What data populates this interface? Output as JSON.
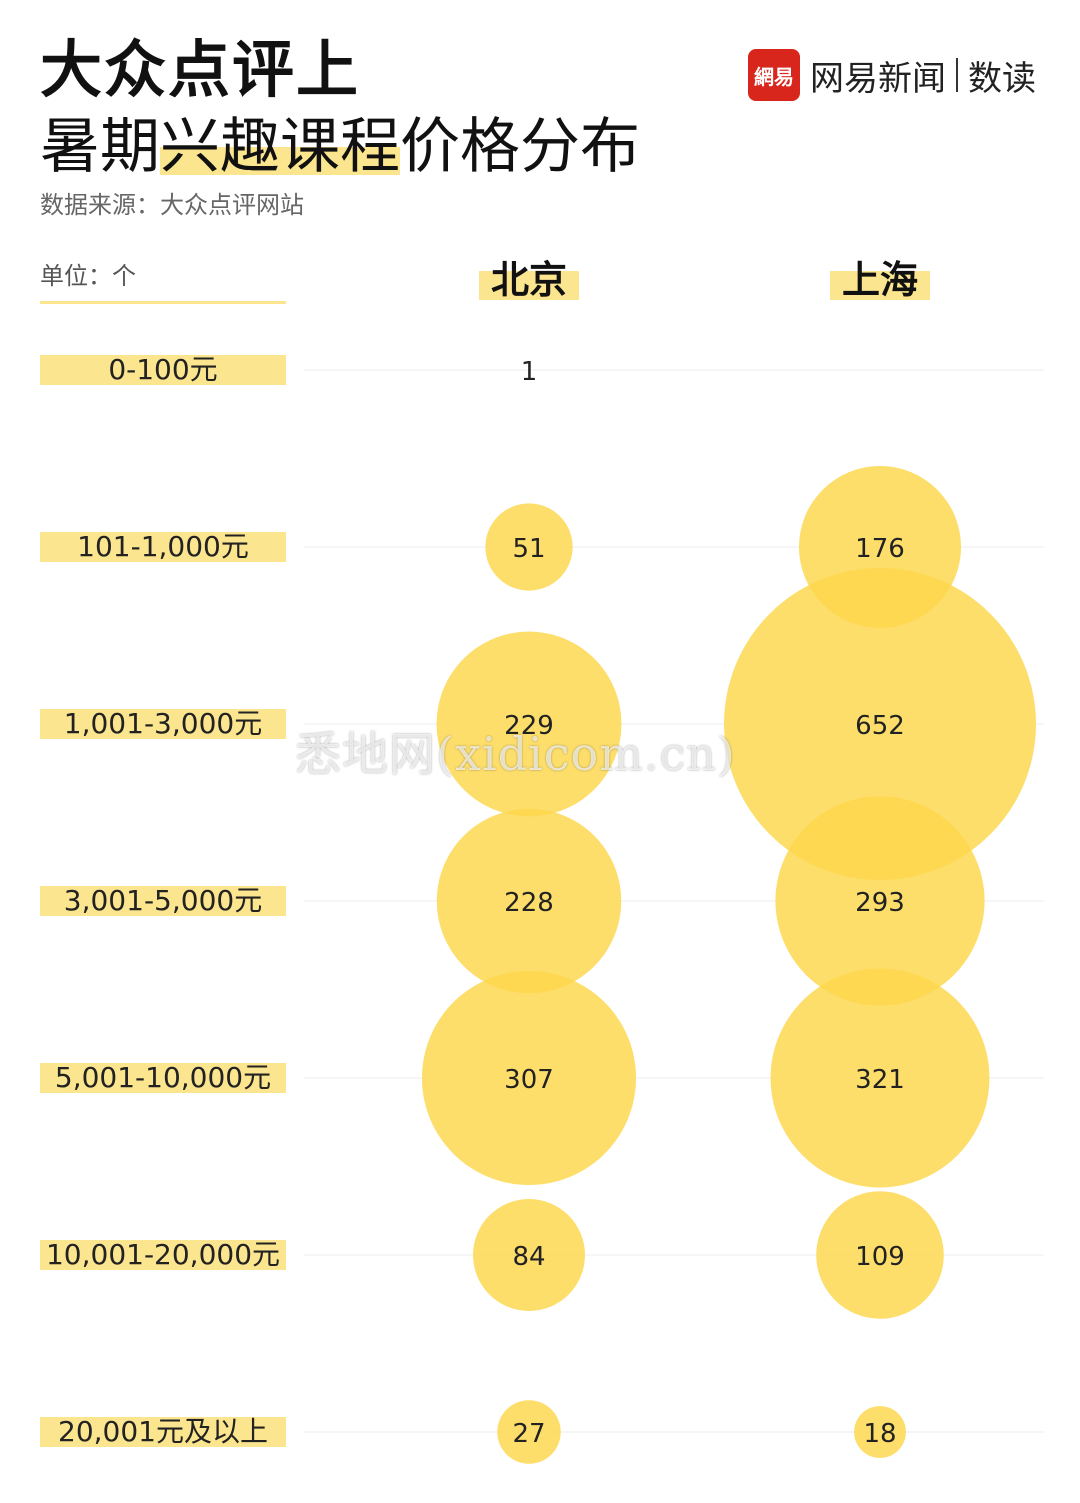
{
  "header": {
    "title_line1": "大众点评上",
    "title_line2_pre": "暑期",
    "title_line2_highlight": "兴趣课程",
    "title_line2_post": "价格分布",
    "source": "数据来源：大众点评网站"
  },
  "logo": {
    "badge_text": "網易",
    "name": "网易新闻",
    "section": "数读",
    "badge_color": "#d9261c"
  },
  "unit_label": "单位：个",
  "watermark": "悉地网(xidicom.cn)",
  "colors": {
    "bubble": "#fdd74a",
    "label_bg": "#fce58f",
    "gridline": "#eeeeee"
  },
  "chart_data": {
    "type": "bubble",
    "title": "大众点评上暑期兴趣课程价格分布",
    "unit": "个",
    "categories": [
      "0-100元",
      "101-1,000元",
      "1,001-3,000元",
      "3,001-5,000元",
      "5,001-10,000元",
      "10,001-20,000元",
      "20,001元及以上"
    ],
    "series": [
      {
        "name": "北京",
        "values": [
          1,
          51,
          229,
          228,
          307,
          84,
          27
        ]
      },
      {
        "name": "上海",
        "values": [
          0,
          176,
          652,
          293,
          321,
          109,
          18
        ]
      }
    ]
  }
}
